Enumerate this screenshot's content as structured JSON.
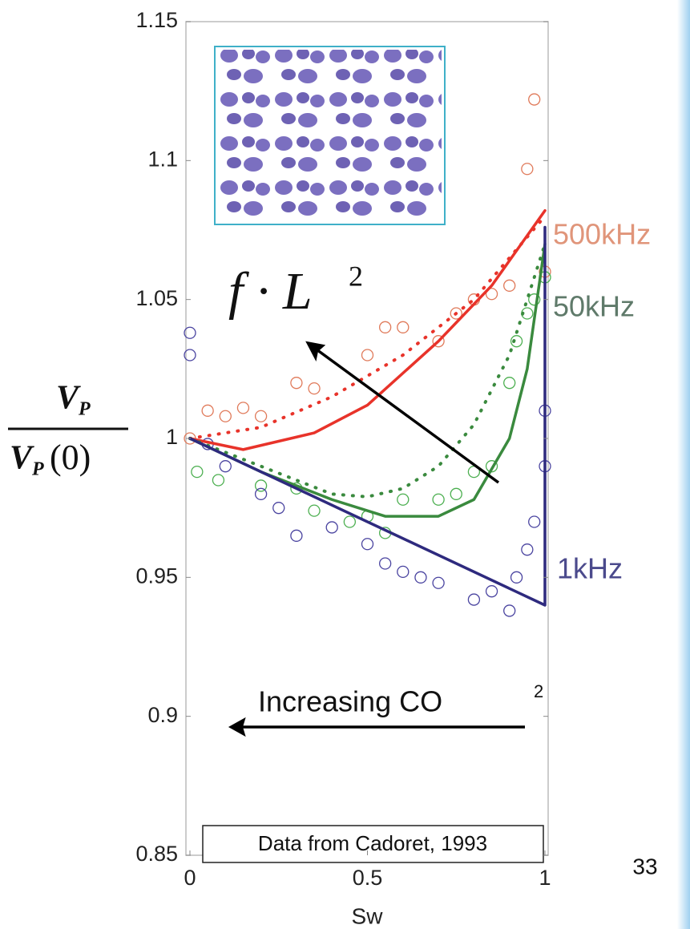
{
  "chart_data": {
    "type": "line",
    "xlabel": "Sw",
    "ylabel": {
      "numerator": "V",
      "numerator_sub": "P",
      "denominator": "V",
      "denominator_sub": "P",
      "denominator_arg": "(0)"
    },
    "xlim": [
      0,
      1
    ],
    "ylim": [
      0.85,
      1.15
    ],
    "xticks": [
      0,
      0.5,
      1
    ],
    "yticks": [
      0.85,
      0.9,
      0.95,
      1,
      1.05,
      1.1,
      1.15
    ],
    "series": [
      {
        "color": "#e8332a",
        "style": "solid",
        "x": [
          0,
          0.15,
          0.35,
          0.5,
          0.7,
          0.85,
          1
        ],
        "y": [
          1.0,
          0.996,
          1.002,
          1.012,
          1.035,
          1.055,
          1.082
        ]
      },
      {
        "color": "#e8332a",
        "style": "dotted",
        "x": [
          0,
          0.2,
          0.4,
          0.6,
          0.8,
          1
        ],
        "y": [
          1.0,
          1.004,
          1.015,
          1.03,
          1.05,
          1.08
        ]
      },
      {
        "color": "#3a8a3e",
        "style": "solid",
        "x": [
          0,
          0.2,
          0.4,
          0.55,
          0.7,
          0.8,
          0.9,
          0.95,
          1
        ],
        "y": [
          1.0,
          0.988,
          0.978,
          0.972,
          0.972,
          0.978,
          1.0,
          1.025,
          1.07
        ]
      },
      {
        "color": "#3a8a3e",
        "style": "dotted",
        "x": [
          0,
          0.2,
          0.4,
          0.5,
          0.6,
          0.7,
          0.8,
          0.9,
          1
        ],
        "y": [
          1.0,
          0.99,
          0.98,
          0.979,
          0.982,
          0.99,
          1.005,
          1.03,
          1.07
        ]
      },
      {
        "color": "#2e2a7e",
        "style": "solid",
        "x": [
          0,
          1,
          1
        ],
        "y": [
          1.0,
          0.94,
          1.076
        ]
      }
    ],
    "points": [
      {
        "color": "#e07a5a",
        "x": [
          0,
          0.05,
          0.1,
          0.15,
          0.2,
          0.3,
          0.35,
          0.5,
          0.55,
          0.6,
          0.7,
          0.75,
          0.8,
          0.85,
          0.9,
          0.95,
          0.97,
          1
        ],
        "y": [
          1.0,
          1.01,
          1.008,
          1.011,
          1.008,
          1.02,
          1.018,
          1.03,
          1.04,
          1.04,
          1.035,
          1.045,
          1.05,
          1.052,
          1.055,
          1.097,
          1.122,
          1.06
        ]
      },
      {
        "color": "#4caf50",
        "x": [
          0.02,
          0.08,
          0.2,
          0.3,
          0.35,
          0.45,
          0.5,
          0.55,
          0.6,
          0.7,
          0.75,
          0.8,
          0.85,
          0.9,
          0.92,
          0.95,
          0.97,
          1
        ],
        "y": [
          0.988,
          0.985,
          0.983,
          0.982,
          0.974,
          0.97,
          0.972,
          0.966,
          0.978,
          0.978,
          0.98,
          0.988,
          0.99,
          1.02,
          1.035,
          1.045,
          1.05,
          1.058
        ]
      },
      {
        "color": "#4a44a0",
        "x": [
          0,
          0,
          0.05,
          0.1,
          0.2,
          0.25,
          0.3,
          0.4,
          0.5,
          0.55,
          0.6,
          0.65,
          0.7,
          0.8,
          0.85,
          0.9,
          0.92,
          0.95,
          0.97,
          1,
          1
        ],
        "y": [
          1.038,
          1.03,
          0.998,
          0.99,
          0.98,
          0.975,
          0.965,
          0.968,
          0.962,
          0.955,
          0.952,
          0.95,
          0.948,
          0.942,
          0.945,
          0.938,
          0.95,
          0.96,
          0.97,
          0.99,
          1.01
        ]
      }
    ],
    "annotations": [
      {
        "text": "500kHz",
        "color": "#e0957a"
      },
      {
        "text": "50kHz",
        "color": "#5f7a6a"
      },
      {
        "text": "1kHz",
        "color": "#4b4a8c"
      }
    ],
    "formula": {
      "text": "f · L",
      "sup": "2"
    },
    "trend": {
      "text": "Increasing CO",
      "sup": "2"
    },
    "source": "Data from Cadoret, 1993",
    "page_number": "33"
  }
}
